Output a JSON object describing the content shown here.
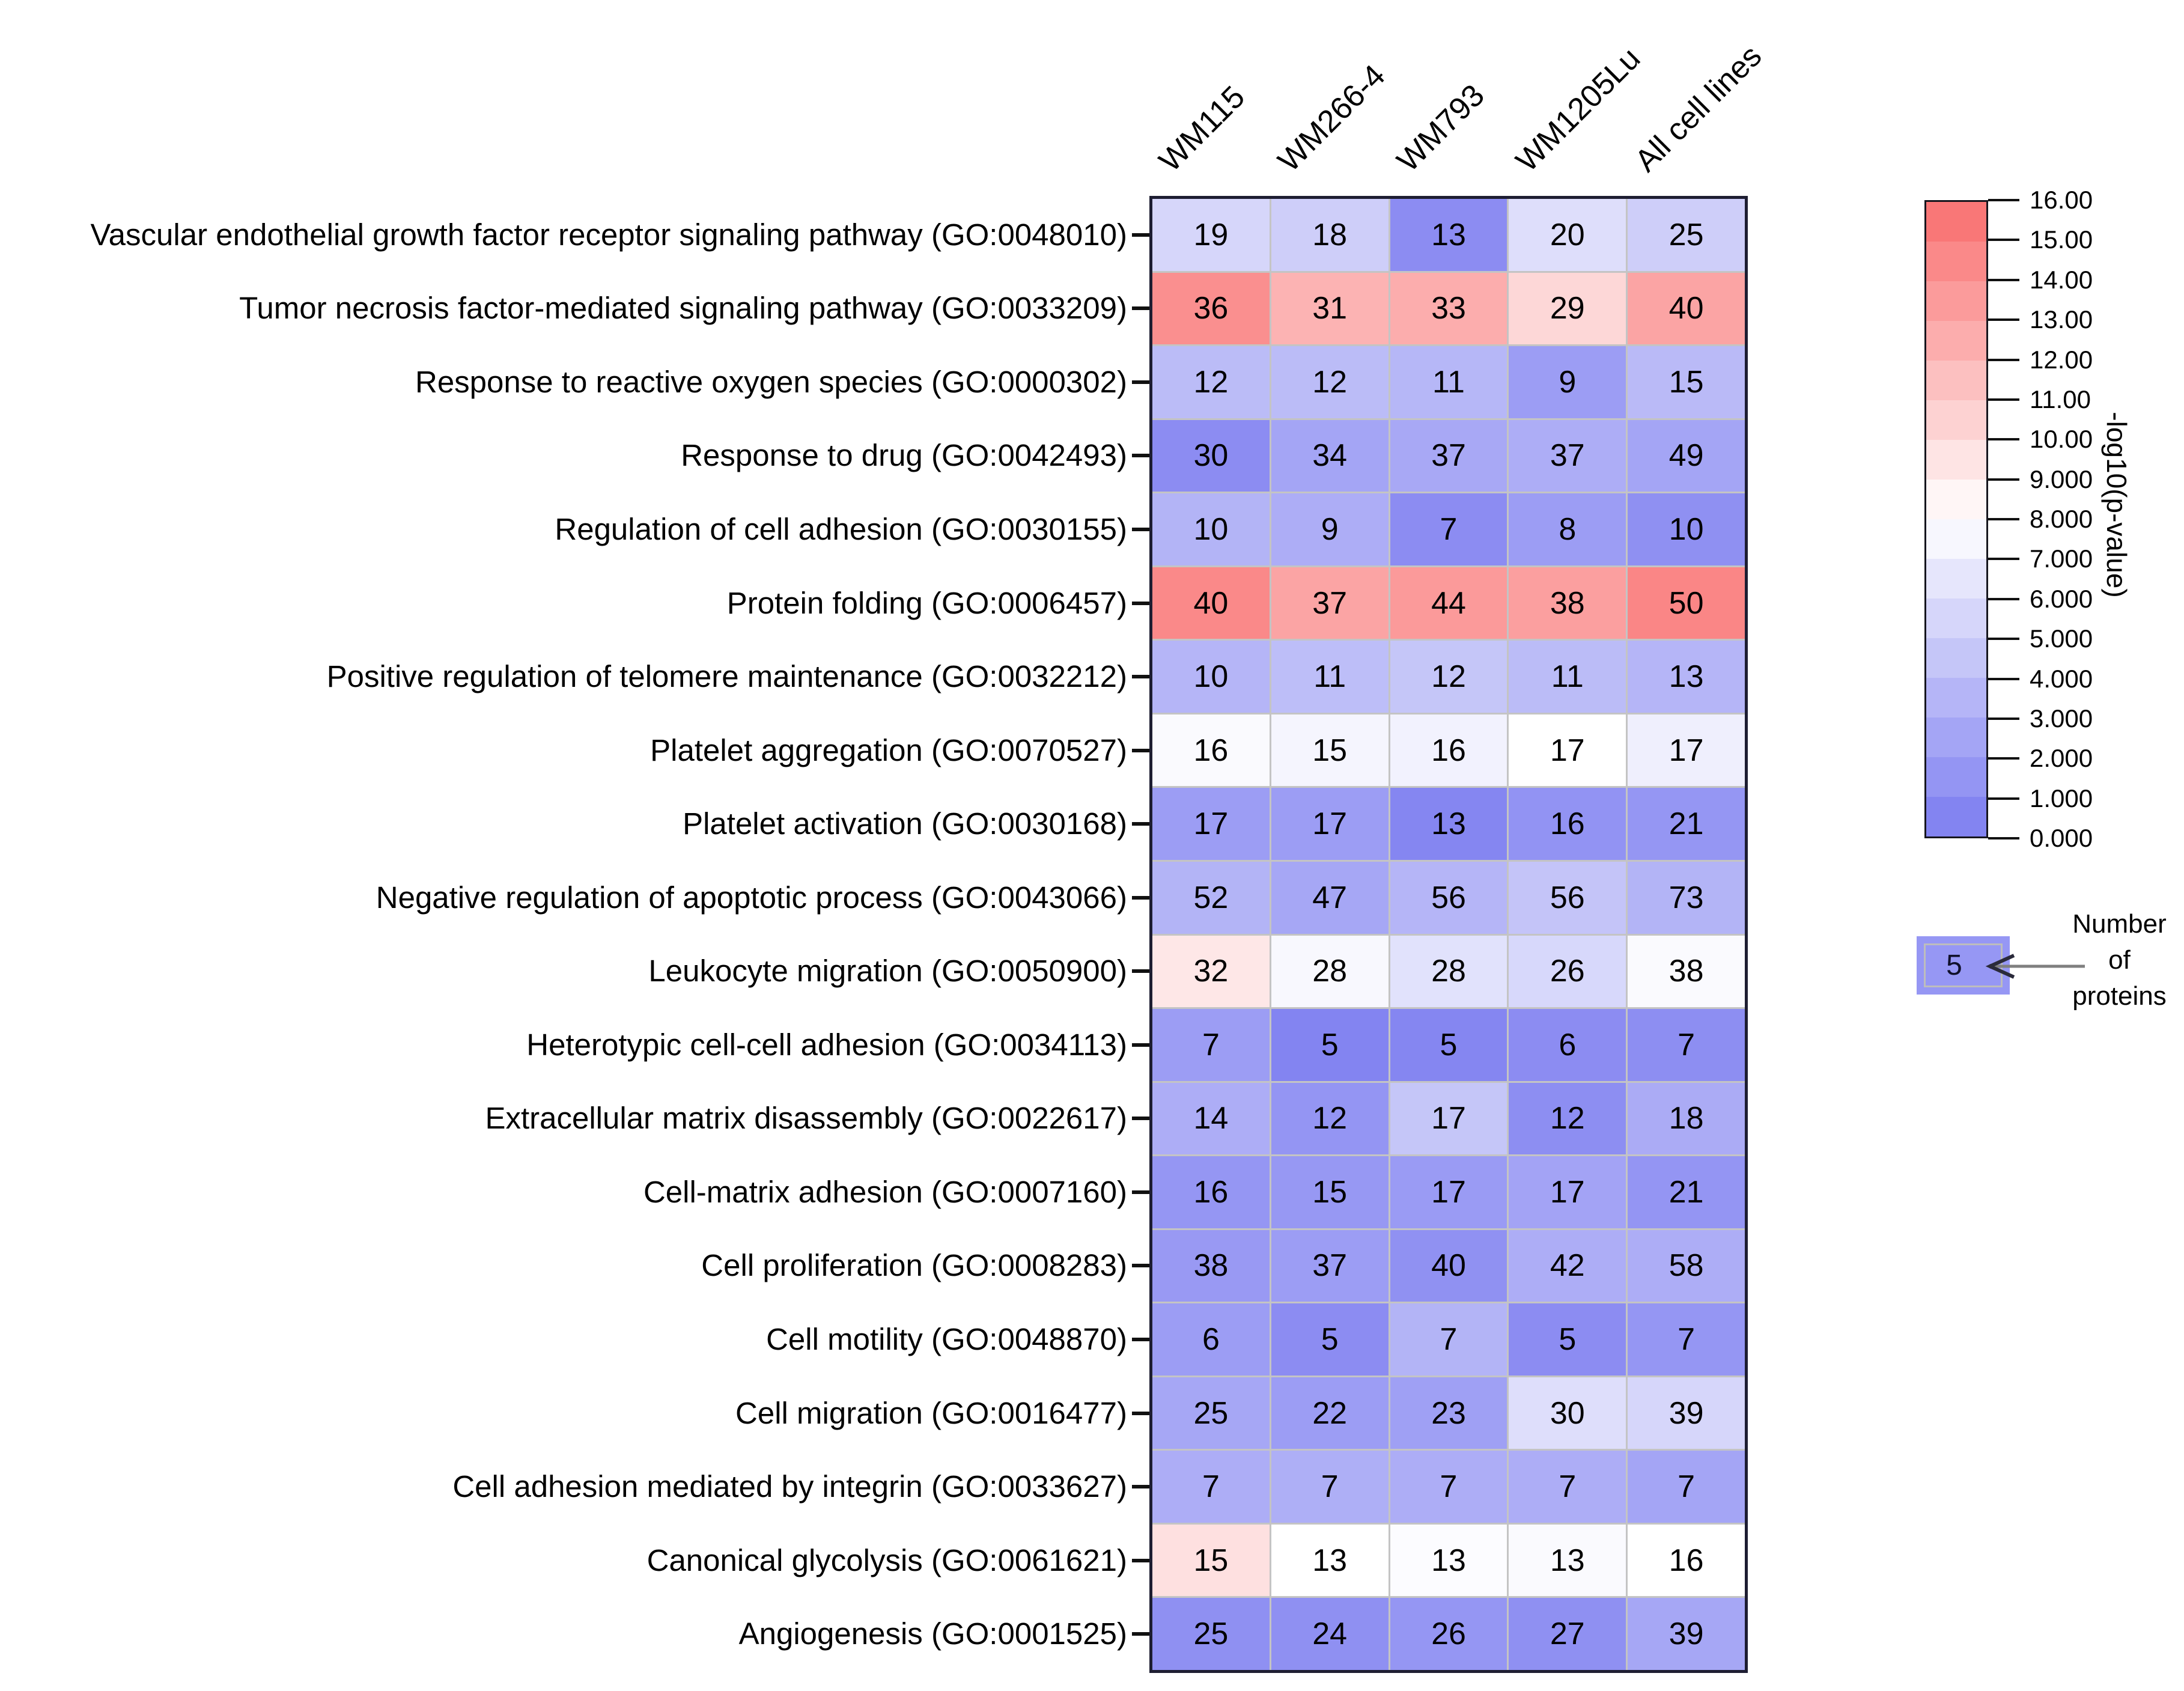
{
  "chart_data": {
    "type": "heatmap",
    "description": "GO biological process enrichment heatmap; cell numbers are protein counts, cell color encodes -log10(p-value)",
    "columns": [
      "WM115",
      "WM266-4",
      "WM793",
      "WM1205Lu",
      "All cell lines"
    ],
    "cell_value_meaning": "Number of proteins",
    "color_value_meaning": "-log10(p-value)",
    "rows": [
      {
        "label": "Vascular endothelial growth factor receptor signaling pathway (GO:0048010)",
        "counts": [
          19,
          18,
          13,
          20,
          25
        ],
        "logp_est": [
          5.5,
          5.0,
          1.0,
          6.0,
          5.0
        ]
      },
      {
        "label": "Tumor necrosis factor-mediated signaling pathway (GO:0033209)",
        "counts": [
          36,
          31,
          33,
          29,
          40
        ],
        "logp_est": [
          14.2,
          12.2,
          12.5,
          10.2,
          13.0
        ]
      },
      {
        "label": "Response to reactive oxygen species (GO:0000302)",
        "counts": [
          12,
          12,
          11,
          9,
          15
        ],
        "logp_est": [
          3.9,
          3.9,
          3.6,
          2.0,
          3.8
        ]
      },
      {
        "label": "Response to drug (GO:0042493)",
        "counts": [
          30,
          34,
          37,
          37,
          49
        ],
        "logp_est": [
          1.0,
          2.5,
          2.7,
          3.0,
          2.5
        ]
      },
      {
        "label": "Regulation of cell adhesion (GO:0030155)",
        "counts": [
          10,
          9,
          7,
          8,
          10
        ],
        "logp_est": [
          3.4,
          3.0,
          1.0,
          2.0,
          1.2
        ]
      },
      {
        "label": "Protein folding (GO:0006457)",
        "counts": [
          40,
          37,
          44,
          38,
          50
        ],
        "logp_est": [
          14.5,
          13.0,
          13.6,
          13.3,
          14.7
        ]
      },
      {
        "label": "Positive regulation of telomere maintenance (GO:0032212)",
        "counts": [
          10,
          11,
          12,
          11,
          13
        ],
        "logp_est": [
          3.5,
          4.0,
          4.5,
          3.9,
          3.5
        ]
      },
      {
        "label": "Platelet aggregation (GO:0070527)",
        "counts": [
          16,
          15,
          16,
          17,
          17
        ],
        "logp_est": [
          7.7,
          7.4,
          7.2,
          8.0,
          7.0
        ]
      },
      {
        "label": "Platelet activation (GO:0030168)",
        "counts": [
          17,
          17,
          13,
          16,
          21
        ],
        "logp_est": [
          2.0,
          2.0,
          0.6,
          1.4,
          1.6
        ]
      },
      {
        "label": "Negative regulation of apoptotic process (GO:0043066)",
        "counts": [
          52,
          47,
          56,
          56,
          73
        ],
        "logp_est": [
          3.4,
          2.6,
          3.5,
          4.4,
          3.4
        ]
      },
      {
        "label": "Leukocyte migration (GO:0050900)",
        "counts": [
          32,
          28,
          28,
          26,
          38
        ],
        "logp_est": [
          9.3,
          7.6,
          6.2,
          5.6,
          7.7
        ]
      },
      {
        "label": "Heterotypic cell-cell adhesion (GO:0034113)",
        "counts": [
          7,
          5,
          5,
          6,
          7
        ],
        "logp_est": [
          2.0,
          0.5,
          0.6,
          1.0,
          1.1
        ]
      },
      {
        "label": "Extracellular matrix disassembly (GO:0022617)",
        "counts": [
          14,
          12,
          17,
          12,
          18
        ],
        "logp_est": [
          3.0,
          1.5,
          4.5,
          1.1,
          2.9
        ]
      },
      {
        "label": "Cell-matrix adhesion (GO:0007160)",
        "counts": [
          16,
          15,
          17,
          17,
          21
        ],
        "logp_est": [
          1.6,
          1.7,
          1.9,
          2.4,
          1.5
        ]
      },
      {
        "label": "Cell proliferation (GO:0008283)",
        "counts": [
          38,
          37,
          40,
          42,
          58
        ],
        "logp_est": [
          1.8,
          2.0,
          1.3,
          3.0,
          3.0
        ]
      },
      {
        "label": "Cell motility (GO:0048870)",
        "counts": [
          6,
          5,
          7,
          5,
          7
        ],
        "logp_est": [
          2.0,
          1.0,
          3.4,
          1.0,
          1.6
        ]
      },
      {
        "label": "Cell migration (GO:0016477)",
        "counts": [
          25,
          22,
          23,
          30,
          39
        ],
        "logp_est": [
          2.6,
          2.0,
          2.2,
          6.0,
          5.5
        ]
      },
      {
        "label": "Cell adhesion mediated by integrin (GO:0033627)",
        "counts": [
          7,
          7,
          7,
          7,
          7
        ],
        "logp_est": [
          3.0,
          3.1,
          3.0,
          3.0,
          2.5
        ]
      },
      {
        "label": "Canonical glycolysis (GO:0061621)",
        "counts": [
          15,
          13,
          13,
          13,
          16
        ],
        "logp_est": [
          9.7,
          8.0,
          7.8,
          7.7,
          8.0
        ]
      },
      {
        "label": "Angiogenesis (GO:0001525)",
        "counts": [
          25,
          24,
          26,
          27,
          39
        ],
        "logp_est": [
          1.2,
          1.2,
          1.6,
          1.2,
          2.6
        ]
      }
    ],
    "colorbar": {
      "title": "-log10(p-value)",
      "vmin": 0,
      "vmid": 8,
      "vmax": 16,
      "ticks": [
        {
          "v": 16,
          "label": "16.00"
        },
        {
          "v": 15,
          "label": "15.00"
        },
        {
          "v": 14,
          "label": "14.00"
        },
        {
          "v": 13,
          "label": "13.00"
        },
        {
          "v": 12,
          "label": "12.00"
        },
        {
          "v": 11,
          "label": "11.00"
        },
        {
          "v": 10,
          "label": "10.00"
        },
        {
          "v": 9,
          "label": "9.000"
        },
        {
          "v": 8,
          "label": "8.000"
        },
        {
          "v": 7,
          "label": "7.000"
        },
        {
          "v": 6,
          "label": "6.000"
        },
        {
          "v": 5,
          "label": "5.000"
        },
        {
          "v": 4,
          "label": "4.000"
        },
        {
          "v": 3,
          "label": "3.000"
        },
        {
          "v": 2,
          "label": "2.000"
        },
        {
          "v": 1,
          "label": "1.000"
        },
        {
          "v": 0,
          "label": "0.000"
        }
      ],
      "colors": {
        "low": "#7b7cf0",
        "mid": "#ffffff",
        "high": "#f96e6e"
      }
    },
    "legend": {
      "example_value": "5",
      "label_lines": [
        "Number",
        "of",
        "proteins"
      ],
      "example_cell_color": "#9697f4"
    },
    "layout_colors": {
      "grid_line": "#c4c4c4",
      "heatmap_border": "#1e1e32",
      "arrow": "#7f7f7f"
    }
  }
}
